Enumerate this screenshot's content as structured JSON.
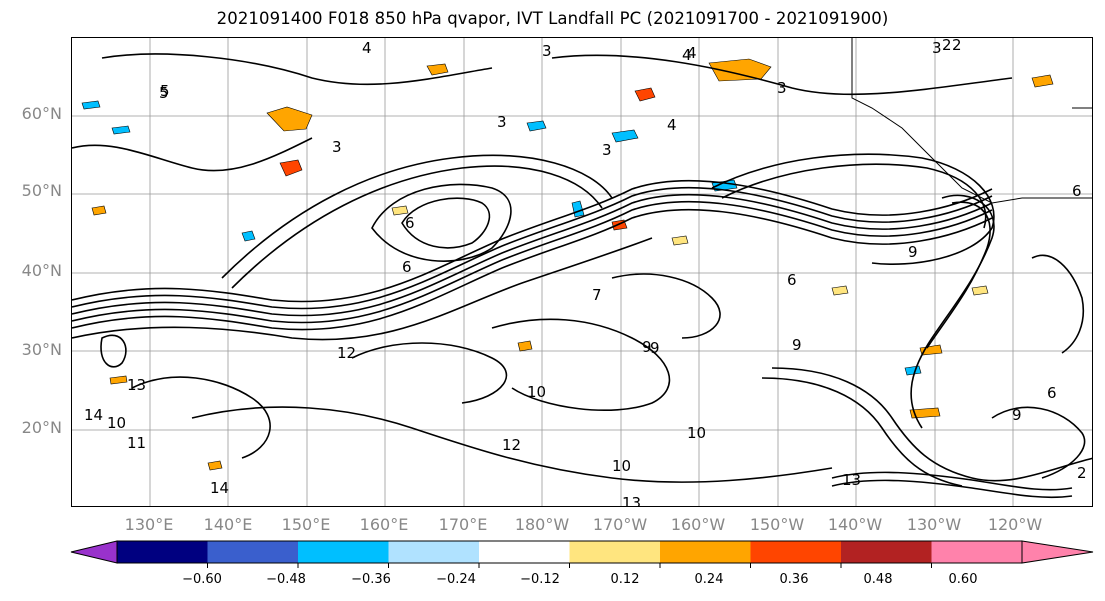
{
  "title": "2021091400 F018 850 hPa qvapor, IVT Landfall PC (2021091700 - 2021091900)",
  "map": {
    "lat_labels": [
      "60°N",
      "50°N",
      "40°N",
      "30°N",
      "20°N"
    ],
    "lon_labels": [
      "130°E",
      "140°E",
      "150°E",
      "160°E",
      "170°E",
      "180°W",
      "170°W",
      "160°W",
      "150°W",
      "140°W",
      "130°W",
      "120°W"
    ],
    "contour_labels": [
      "4",
      "3",
      "2",
      "3",
      "4",
      "5",
      "4",
      "3",
      "3",
      "3",
      "6",
      "6",
      "6",
      "7",
      "9",
      "9",
      "6",
      "9",
      "10",
      "10",
      "11",
      "12",
      "13",
      "13",
      "14",
      "14",
      "13",
      "12",
      "10",
      "9",
      "10",
      "9",
      "5",
      "6",
      "3",
      "4",
      "2",
      "2"
    ],
    "contour_levels": "qvapor (g/kg)",
    "shading_field": "IVT Landfall PC"
  },
  "colorbar": {
    "labels": [
      "−0.60",
      "−0.48",
      "−0.36",
      "−0.24",
      "−0.12",
      "0.12",
      "0.24",
      "0.36",
      "0.48",
      "0.60"
    ],
    "colors": [
      "#9932CC",
      "#000080",
      "#3A5FCD",
      "#00BFFF",
      "#B0E2FF",
      "#FFFFFF",
      "#FFE57F",
      "#FFA500",
      "#FF4500",
      "#B22222",
      "#FF82AB",
      "#FF82AB"
    ],
    "extend_low_color": "#9932CC",
    "extend_high_color": "#FF82AB"
  }
}
